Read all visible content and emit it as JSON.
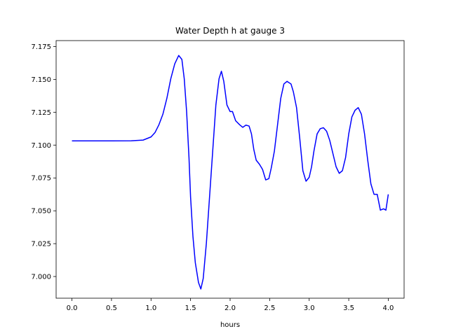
{
  "chart_data": {
    "type": "line",
    "title": "Water Depth h at gauge 3",
    "xlabel": "hours",
    "ylabel": "",
    "xlim": [
      -0.2,
      4.2
    ],
    "ylim": [
      6.9835,
      7.1795
    ],
    "xticks": [
      0.0,
      0.5,
      1.0,
      1.5,
      2.0,
      2.5,
      3.0,
      3.5,
      4.0
    ],
    "xtick_labels": [
      "0.0",
      "0.5",
      "1.0",
      "1.5",
      "2.0",
      "2.5",
      "3.0",
      "3.5",
      "4.0"
    ],
    "yticks": [
      7.0,
      7.025,
      7.05,
      7.075,
      7.1,
      7.125,
      7.15,
      7.175
    ],
    "ytick_labels": [
      "7.000",
      "7.025",
      "7.050",
      "7.075",
      "7.100",
      "7.125",
      "7.150",
      "7.175"
    ],
    "grid": false,
    "series": [
      {
        "color": "#0000ff",
        "x": [
          0.0,
          0.25,
          0.5,
          0.75,
          0.9,
          1.0,
          1.05,
          1.1,
          1.15,
          1.2,
          1.25,
          1.3,
          1.35,
          1.39,
          1.42,
          1.45,
          1.48,
          1.5,
          1.53,
          1.56,
          1.6,
          1.63,
          1.66,
          1.7,
          1.74,
          1.78,
          1.82,
          1.86,
          1.89,
          1.92,
          1.96,
          2.0,
          2.03,
          2.07,
          2.12,
          2.16,
          2.2,
          2.24,
          2.27,
          2.3,
          2.33,
          2.37,
          2.41,
          2.45,
          2.49,
          2.52,
          2.56,
          2.6,
          2.64,
          2.68,
          2.72,
          2.77,
          2.8,
          2.84,
          2.88,
          2.92,
          2.96,
          3.0,
          3.03,
          3.06,
          3.1,
          3.14,
          3.18,
          3.22,
          3.26,
          3.3,
          3.34,
          3.38,
          3.42,
          3.46,
          3.5,
          3.54,
          3.58,
          3.62,
          3.66,
          3.7,
          3.74,
          3.78,
          3.82,
          3.86,
          3.9,
          3.94,
          3.97,
          4.0
        ],
        "y": [
          7.1032,
          7.1032,
          7.1032,
          7.1033,
          7.1038,
          7.1062,
          7.1095,
          7.1155,
          7.1235,
          7.1355,
          7.1505,
          7.1618,
          7.1682,
          7.1652,
          7.1505,
          7.1255,
          7.0905,
          7.0605,
          7.0305,
          7.0105,
          6.9955,
          6.9905,
          6.9985,
          7.0255,
          7.0605,
          7.0955,
          7.1305,
          7.1505,
          7.1562,
          7.1485,
          7.1305,
          7.1255,
          7.1255,
          7.1185,
          7.1155,
          7.1135,
          7.1152,
          7.1145,
          7.1085,
          7.0965,
          7.0885,
          7.0855,
          7.0815,
          7.0735,
          7.0745,
          7.0825,
          7.0955,
          7.1155,
          7.1355,
          7.1465,
          7.1485,
          7.1465,
          7.1405,
          7.1285,
          7.1055,
          7.0805,
          7.0725,
          7.0755,
          7.0835,
          7.0955,
          7.1085,
          7.1125,
          7.1132,
          7.1105,
          7.1035,
          7.0935,
          7.0835,
          7.0785,
          7.0805,
          7.0905,
          7.1085,
          7.1215,
          7.1265,
          7.1285,
          7.1235,
          7.1085,
          7.0885,
          7.0705,
          7.0625,
          7.0625,
          7.0505,
          7.0515,
          7.0505,
          7.0625
        ]
      }
    ]
  }
}
